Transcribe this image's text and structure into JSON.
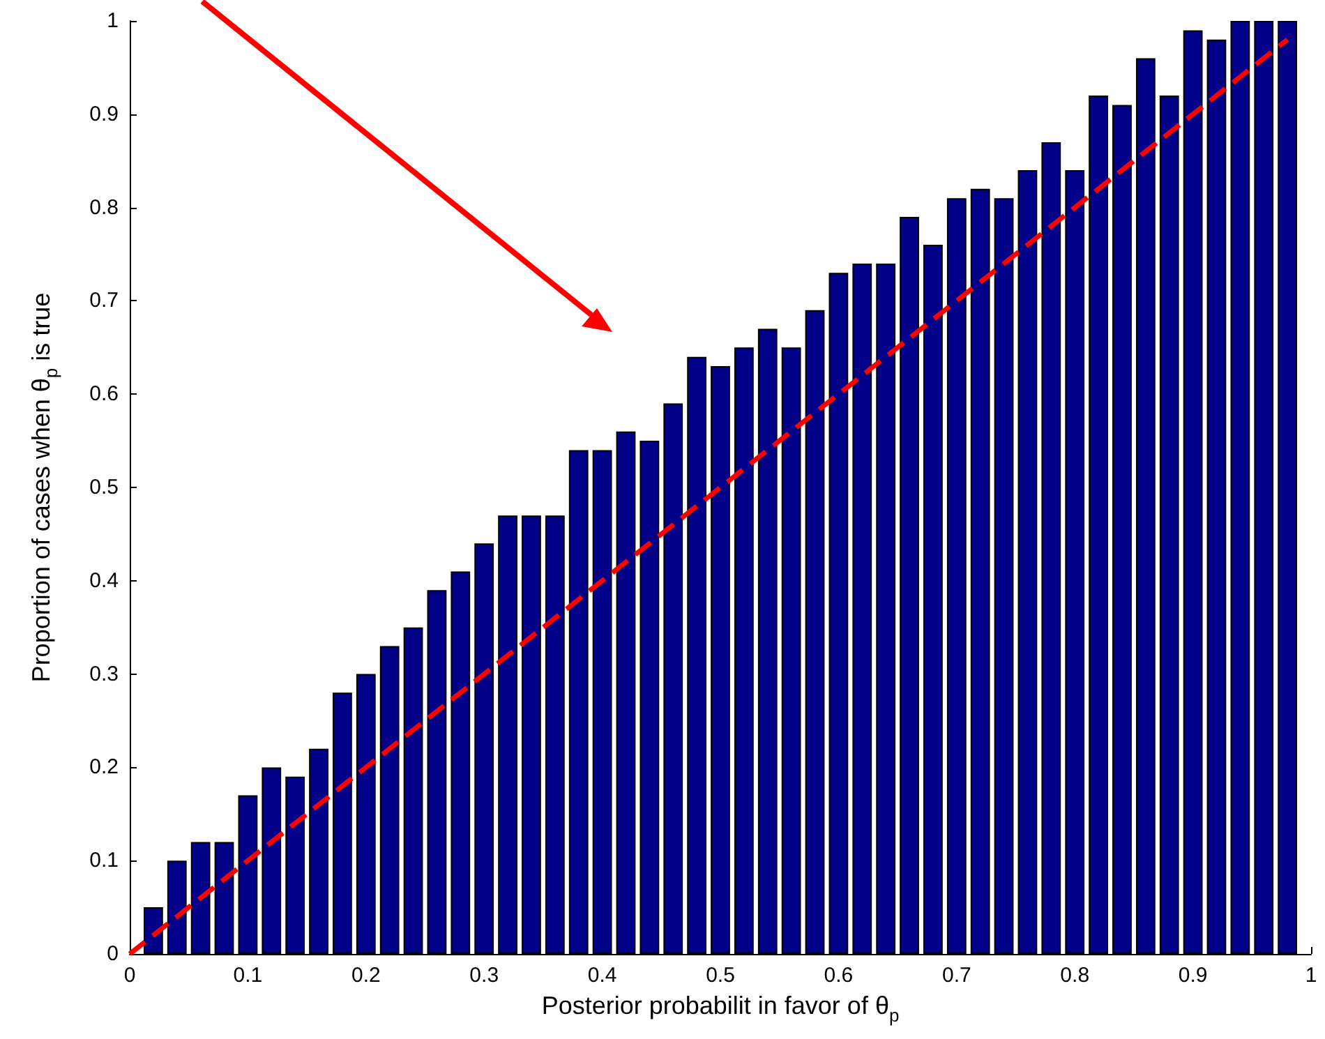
{
  "chart_data": {
    "type": "bar",
    "xlabel": "Posterior probabilit in favor of θ$_{p}$",
    "ylabel": "Proportion of cases when θ$_{p}$ is true",
    "xlim": [
      0,
      1
    ],
    "xticks": [
      0,
      0.1,
      0.2,
      0.3,
      0.4,
      0.5,
      0.6,
      0.7,
      0.8,
      0.9,
      1
    ],
    "ylim": [
      0,
      1
    ],
    "yticks": [
      0,
      0.1,
      0.2,
      0.3,
      0.4,
      0.5,
      0.6,
      0.7,
      0.8,
      0.9,
      1
    ],
    "series": [
      {
        "color": "#000088",
        "x": [
          0.02,
          0.04,
          0.06,
          0.08,
          0.1,
          0.12,
          0.14,
          0.16,
          0.18,
          0.2,
          0.22,
          0.24,
          0.26,
          0.28,
          0.3,
          0.32,
          0.34,
          0.36,
          0.38,
          0.4,
          0.42,
          0.44,
          0.46,
          0.48,
          0.5,
          0.52,
          0.54,
          0.56,
          0.58,
          0.6,
          0.62,
          0.64,
          0.66,
          0.68,
          0.7,
          0.72,
          0.74,
          0.76,
          0.78,
          0.8,
          0.82,
          0.84,
          0.86,
          0.88,
          0.9,
          0.92,
          0.94,
          0.96,
          0.98
        ],
        "values": [
          0.05,
          0.1,
          0.12,
          0.12,
          0.17,
          0.2,
          0.19,
          0.22,
          0.28,
          0.3,
          0.33,
          0.35,
          0.39,
          0.41,
          0.44,
          0.47,
          0.47,
          0.47,
          0.54,
          0.54,
          0.56,
          0.55,
          0.59,
          0.64,
          0.63,
          0.65,
          0.67,
          0.65,
          0.69,
          0.73,
          0.74,
          0.74,
          0.79,
          0.76,
          0.81,
          0.82,
          0.81,
          0.84,
          0.87,
          0.84,
          0.92,
          0.91,
          0.96,
          0.92,
          0.99,
          0.98,
          1,
          1,
          1
        ]
      },
      {
        "type": "line",
        "color": "#ff0000",
        "line_style": "dashed",
        "marker": "none",
        "x": [
          0,
          0.98
        ],
        "values": [
          0,
          0.98
        ]
      }
    ]
  }
}
